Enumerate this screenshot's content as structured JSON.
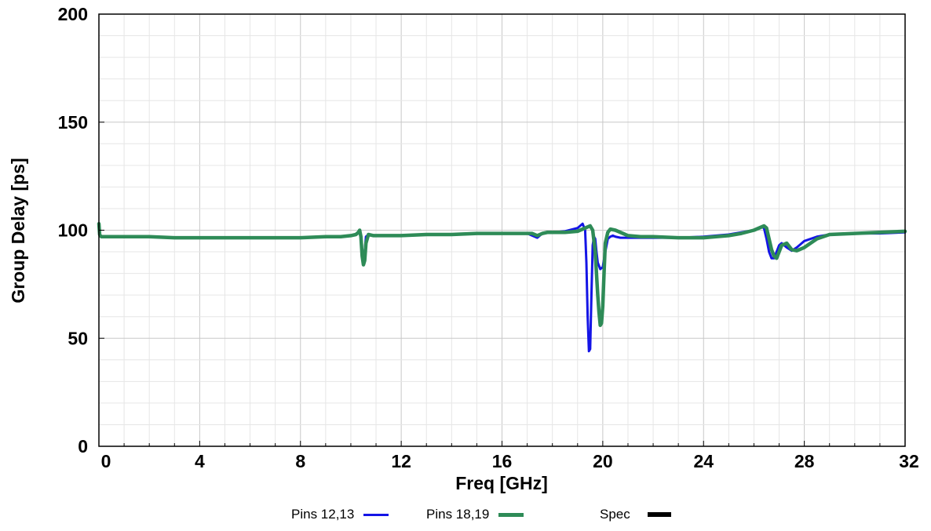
{
  "chart_data": {
    "type": "line",
    "title": "",
    "xlabel": "Freq [GHz]",
    "ylabel": "Group Delay [ps]",
    "xlim": [
      0,
      32
    ],
    "ylim": [
      0,
      200
    ],
    "x_ticks": [
      "0",
      "4",
      "8",
      "12",
      "16",
      "20",
      "24",
      "28",
      "32"
    ],
    "y_ticks": [
      "0",
      "50",
      "100",
      "150",
      "200"
    ],
    "grid": true,
    "legend_position": "bottom",
    "series": [
      {
        "name": "Pins 12,13",
        "color": "#1414e6",
        "x": [
          0.0,
          0.03,
          0.05,
          0.1,
          0.3,
          0.6,
          1.0,
          2.0,
          3.0,
          4.0,
          5.0,
          6.0,
          7.0,
          8.0,
          9.0,
          9.6,
          10.0,
          10.2,
          10.3,
          10.35,
          10.4,
          10.45,
          10.5,
          10.55,
          10.6,
          10.7,
          10.9,
          11.2,
          12.0,
          13.0,
          14.0,
          15.0,
          16.0,
          17.0,
          17.2,
          17.4,
          17.6,
          17.8,
          18.0,
          18.5,
          19.0,
          19.2,
          19.3,
          19.35,
          19.4,
          19.45,
          19.5,
          19.55,
          19.6,
          19.65,
          19.7,
          19.75,
          19.8,
          19.9,
          20.0,
          20.1,
          20.2,
          20.3,
          20.4,
          20.5,
          20.7,
          21.0,
          21.5,
          22.0,
          23.0,
          24.0,
          25.0,
          25.5,
          26.0,
          26.3,
          26.4,
          26.5,
          26.6,
          26.7,
          26.8,
          26.9,
          27.0,
          27.1,
          27.3,
          27.5,
          27.7,
          28.0,
          28.5,
          29.0,
          30.0,
          31.0,
          32.0
        ],
        "y": [
          103,
          98,
          97.5,
          97,
          97,
          97,
          97,
          97,
          96.5,
          96.5,
          96.5,
          96.5,
          96.5,
          96.5,
          97,
          97,
          97.5,
          98,
          99,
          99,
          96,
          87,
          86,
          90,
          97,
          98,
          97.5,
          97.5,
          97.5,
          98,
          98,
          98.5,
          98.5,
          98.5,
          97.5,
          96.5,
          98.5,
          99,
          99,
          99.5,
          101,
          103,
          100,
          85,
          60,
          44,
          45,
          70,
          93,
          97,
          96,
          90,
          85,
          82,
          83,
          90,
          96,
          97,
          97.5,
          97,
          96.5,
          96.5,
          96.5,
          96.5,
          96.5,
          97,
          98,
          99,
          100,
          101.5,
          101,
          96,
          90,
          87,
          87,
          90,
          93,
          94,
          92,
          90.5,
          92,
          95,
          97,
          98,
          98.5,
          98.5,
          99
        ]
      },
      {
        "name": "Pins 18,19",
        "color": "#2e8b57",
        "x": [
          0.0,
          0.03,
          0.05,
          0.1,
          0.3,
          0.6,
          1.0,
          2.0,
          3.0,
          4.0,
          5.0,
          6.0,
          7.0,
          8.0,
          9.0,
          9.6,
          10.0,
          10.2,
          10.3,
          10.35,
          10.4,
          10.45,
          10.5,
          10.55,
          10.6,
          10.7,
          10.9,
          11.2,
          12.0,
          13.0,
          14.0,
          15.0,
          16.0,
          17.0,
          17.2,
          17.4,
          17.6,
          17.8,
          18.0,
          18.5,
          19.0,
          19.3,
          19.5,
          19.6,
          19.7,
          19.75,
          19.8,
          19.85,
          19.9,
          19.95,
          20.0,
          20.05,
          20.1,
          20.2,
          20.3,
          20.5,
          20.8,
          21.0,
          21.5,
          22.0,
          23.0,
          24.0,
          25.0,
          25.5,
          26.0,
          26.3,
          26.4,
          26.5,
          26.6,
          26.7,
          26.8,
          26.9,
          27.0,
          27.1,
          27.3,
          27.5,
          27.7,
          28.0,
          28.5,
          29.0,
          30.0,
          31.0,
          32.0
        ],
        "y": [
          103,
          98,
          97.5,
          97,
          97,
          97,
          97,
          97,
          96.5,
          96.5,
          96.5,
          96.5,
          96.5,
          96.5,
          97,
          97,
          97.5,
          98,
          99,
          100,
          97,
          88,
          84,
          86,
          94,
          98,
          97.5,
          97.5,
          97.5,
          98,
          98,
          98.5,
          98.5,
          98.5,
          98.5,
          97.5,
          98.5,
          99,
          99,
          99,
          99.5,
          101,
          102,
          100,
          90,
          80,
          70,
          62,
          56,
          57,
          65,
          80,
          94,
          99,
          100.5,
          100,
          98.5,
          97.5,
          97,
          97,
          96.5,
          96.5,
          97.5,
          98.5,
          100,
          101.5,
          102,
          101,
          96,
          91,
          88,
          87,
          90,
          93,
          94,
          91,
          90.5,
          92,
          96,
          98,
          98.5,
          99,
          99.5
        ]
      },
      {
        "name": "Spec",
        "color": "#000000",
        "x": [],
        "y": []
      }
    ]
  }
}
